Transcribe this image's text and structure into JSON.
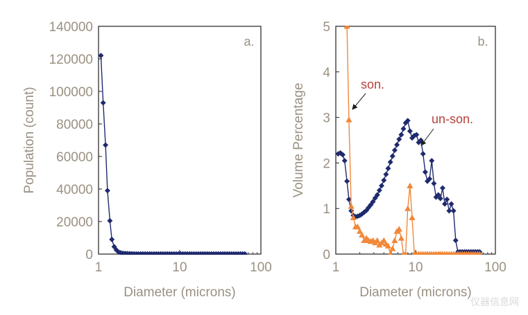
{
  "colors": {
    "unsonicated": "#1f2a6e",
    "sonicated": "#f0883a",
    "axis": "#1f1f1f",
    "text": "#9a9082",
    "annotation": "#b5423c"
  },
  "watermark": "仪器信息网",
  "chart_data": [
    {
      "type": "line",
      "panel_label": "a.",
      "xlabel": "Diameter (microns)",
      "ylabel": "Population (count)",
      "xscale": "log",
      "xlim": [
        1,
        100
      ],
      "ylim": [
        0,
        140000
      ],
      "x_ticks": [
        "1",
        "10",
        "100"
      ],
      "y_ticks": [
        "0",
        "20000",
        "40000",
        "60000",
        "80000",
        "100000",
        "120000",
        "140000"
      ],
      "grid": false,
      "series": [
        {
          "name": "un-son.",
          "marker": "diamond",
          "x": [
            1.07,
            1.14,
            1.22,
            1.29,
            1.38,
            1.46,
            1.56,
            1.66,
            1.77,
            1.88,
            2.0,
            2.13,
            2.27,
            2.42,
            2.57,
            2.74,
            2.92,
            3.11,
            3.31,
            3.52,
            3.75,
            4.0,
            4.26,
            4.53,
            4.83,
            5.14,
            5.47,
            5.83,
            6.21,
            6.61,
            7.04,
            7.5,
            7.98,
            8.5,
            9.05,
            9.64,
            10.26,
            10.93,
            11.64,
            12.39,
            13.2,
            14.05,
            14.96,
            15.93,
            16.96,
            18.06,
            19.24,
            20.48,
            21.81,
            23.22,
            24.73,
            26.33,
            28.04,
            29.86,
            31.79,
            33.86,
            36.05,
            38.39,
            40.88,
            43.53,
            46.35,
            49.36,
            52.56,
            55.97,
            59.6,
            63.47
          ],
          "y": [
            122000,
            93000,
            67000,
            39000,
            20500,
            9000,
            4500,
            2500,
            1200,
            800,
            500,
            400,
            300,
            250,
            200,
            150,
            100,
            100,
            100,
            100,
            100,
            100,
            100,
            100,
            100,
            100,
            100,
            100,
            100,
            100,
            100,
            100,
            100,
            100,
            100,
            100,
            100,
            100,
            100,
            100,
            100,
            100,
            100,
            100,
            100,
            100,
            100,
            100,
            100,
            100,
            100,
            100,
            100,
            100,
            100,
            100,
            100,
            100,
            100,
            100,
            100,
            100,
            100,
            100,
            100,
            100
          ]
        }
      ]
    },
    {
      "type": "line",
      "panel_label": "b.",
      "xlabel": "Diameter (microns)",
      "ylabel": "Volume Percentage",
      "xscale": "log",
      "xlim": [
        1,
        100
      ],
      "ylim": [
        0,
        5
      ],
      "x_ticks": [
        "1",
        "10",
        "100"
      ],
      "y_ticks": [
        "0",
        "1",
        "2",
        "3",
        "4",
        "5"
      ],
      "grid": false,
      "annotations": [
        {
          "text": "son.",
          "series": "son."
        },
        {
          "text": "un-son.",
          "series": "un-son."
        }
      ],
      "series": [
        {
          "name": "un-son.",
          "marker": "diamond",
          "x": [
            1.07,
            1.14,
            1.22,
            1.29,
            1.38,
            1.46,
            1.56,
            1.66,
            1.77,
            1.88,
            2.0,
            2.13,
            2.27,
            2.42,
            2.57,
            2.74,
            2.92,
            3.11,
            3.31,
            3.52,
            3.75,
            4.0,
            4.26,
            4.53,
            4.83,
            5.14,
            5.47,
            5.83,
            6.21,
            6.61,
            7.04,
            7.5,
            7.98,
            8.5,
            9.05,
            9.64,
            10.26,
            10.93,
            11.64,
            12.39,
            13.2,
            14.05,
            14.96,
            15.93,
            16.96,
            18.06,
            19.24,
            20.48,
            21.81,
            23.22,
            24.73,
            26.33,
            28.04,
            29.86,
            31.79,
            33.86,
            36.05,
            38.39,
            40.88,
            43.53,
            46.35,
            49.36,
            52.56,
            55.97,
            59.6,
            63.47
          ],
          "y": [
            2.2,
            2.22,
            2.18,
            2.05,
            1.6,
            1.2,
            0.95,
            0.85,
            0.82,
            0.83,
            0.85,
            0.88,
            0.92,
            0.96,
            1.02,
            1.08,
            1.15,
            1.23,
            1.3,
            1.4,
            1.5,
            1.62,
            1.75,
            1.88,
            2.02,
            2.15,
            2.28,
            2.4,
            2.52,
            2.62,
            2.75,
            2.88,
            2.93,
            2.7,
            2.55,
            2.6,
            2.62,
            2.45,
            2.5,
            2.2,
            1.8,
            1.6,
            1.65,
            2.05,
            1.55,
            1.25,
            1.3,
            1.22,
            1.45,
            1.1,
            1.2,
            0.95,
            1.1,
            0.95,
            0.3,
            0.05,
            0.05,
            0.05,
            0.05,
            0.05,
            0.05,
            0.05,
            0.05,
            0.05,
            0.05,
            0.05
          ]
        },
        {
          "name": "son.",
          "marker": "triangle",
          "x": [
            1.38,
            1.46,
            1.56,
            1.66,
            1.77,
            1.88,
            2.0,
            2.13,
            2.27,
            2.42,
            2.57,
            2.74,
            2.92,
            3.11,
            3.31,
            3.52,
            3.75,
            4.0,
            4.26,
            4.53,
            4.83,
            5.14,
            5.47,
            5.83,
            6.21,
            6.61,
            7.04,
            7.5,
            7.98,
            8.5,
            9.05,
            9.64,
            10.26,
            10.93,
            11.64,
            12.39,
            13.2,
            14.05,
            14.96,
            15.93,
            16.96,
            18.06,
            19.24,
            20.48,
            21.81,
            23.22,
            24.73,
            26.33,
            28.04,
            29.86,
            31.79,
            33.86,
            36.05,
            38.39,
            40.88,
            43.53,
            46.35,
            49.36,
            52.56,
            55.97,
            59.6,
            63.47
          ],
          "y": [
            5.0,
            2.95,
            1.05,
            0.8,
            0.6,
            0.6,
            0.5,
            0.42,
            0.3,
            0.35,
            0.3,
            0.28,
            0.3,
            0.25,
            0.3,
            0.2,
            0.25,
            0.3,
            0.22,
            0.18,
            0.0,
            0.12,
            0.3,
            0.5,
            0.55,
            0.35,
            0.0,
            0.0,
            1.0,
            1.5,
            0.8,
            0.0,
            0.0,
            0.0,
            0.0,
            0.0,
            0.0,
            0.0,
            0.0,
            0.0,
            0.0,
            0.0,
            0.0,
            0.0,
            0.0,
            0.0,
            0.0,
            0.0,
            0.0,
            0.0,
            0.0,
            0.0,
            0.0,
            0.0,
            0.0,
            0.0,
            0.0,
            0.0,
            0.0,
            0.0,
            0.0,
            0.0
          ]
        }
      ]
    }
  ]
}
